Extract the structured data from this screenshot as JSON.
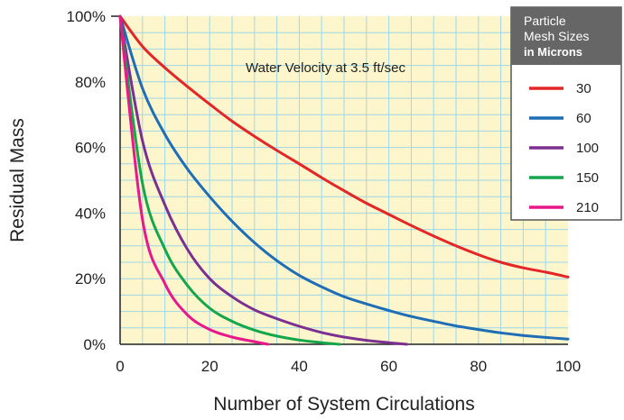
{
  "chart_data": {
    "type": "line",
    "title": "",
    "annotation": "Water Velocity at 3.5 ft/sec",
    "xlabel": "Number of System Circulations",
    "ylabel": "Residual Mass",
    "xlim": [
      0,
      100
    ],
    "ylim": [
      0,
      100
    ],
    "x_ticks": [
      "0",
      "20",
      "40",
      "60",
      "80",
      "100"
    ],
    "y_ticks": [
      "0%",
      "20%",
      "40%",
      "60%",
      "80%",
      "100%"
    ],
    "grid": true,
    "legend": {
      "title_lines": [
        "Particle",
        "Mesh Sizes"
      ],
      "title_bold_line": "in Microns",
      "placement": "top-right"
    },
    "series": [
      {
        "name": "30",
        "color": "#e32626",
        "x": [
          0,
          5,
          10,
          15,
          20,
          25,
          30,
          35,
          40,
          45,
          50,
          55,
          60,
          65,
          70,
          75,
          80,
          85,
          90,
          95,
          100
        ],
        "y": [
          100,
          90.8,
          84.3,
          78.6,
          73.2,
          68.0,
          63.4,
          59.1,
          55.0,
          50.8,
          46.8,
          43.0,
          39.6,
          36.2,
          33.0,
          30.0,
          27.3,
          25.0,
          23.3,
          22.0,
          20.5
        ]
      },
      {
        "name": "60",
        "color": "#1f6db5",
        "x": [
          0,
          5,
          10,
          15,
          20,
          25,
          30,
          35,
          40,
          45,
          50,
          55,
          60,
          65,
          70,
          75,
          80,
          85,
          90,
          95,
          100
        ],
        "y": [
          100,
          78.0,
          64.0,
          53.5,
          45.0,
          37.5,
          31.0,
          25.5,
          21.0,
          17.5,
          14.5,
          12.3,
          10.3,
          8.5,
          7.0,
          5.6,
          4.5,
          3.5,
          2.7,
          2.1,
          1.6
        ]
      },
      {
        "name": "100",
        "color": "#7b2f91",
        "x": [
          0,
          5,
          10,
          15,
          20,
          25,
          30,
          35,
          40,
          45,
          50,
          55,
          60,
          64
        ],
        "y": [
          100,
          62.0,
          42.5,
          29.0,
          20.0,
          14.5,
          10.5,
          7.8,
          5.5,
          3.6,
          2.2,
          1.2,
          0.5,
          0
        ]
      },
      {
        "name": "150",
        "color": "#14a64b",
        "x": [
          0,
          5,
          10,
          15,
          20,
          25,
          30,
          35,
          40,
          45,
          49
        ],
        "y": [
          100,
          49.0,
          29.0,
          18.0,
          11.0,
          7.0,
          4.3,
          2.5,
          1.3,
          0.5,
          0
        ]
      },
      {
        "name": "210",
        "color": "#e8178c",
        "x": [
          0,
          5,
          10,
          15,
          20,
          25,
          30,
          33
        ],
        "y": [
          100,
          38.0,
          18.5,
          9.0,
          4.5,
          2.2,
          0.8,
          0
        ]
      }
    ]
  }
}
